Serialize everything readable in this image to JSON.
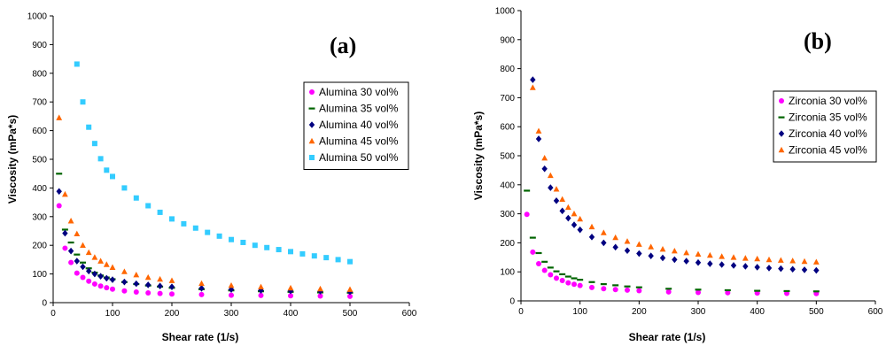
{
  "chart_data": [
    {
      "type": "scatter",
      "panel_label": "(a)",
      "xlabel": "Shear rate (1/s)",
      "ylabel": "Viscosity (mPa*s)",
      "xlim": [
        0,
        600
      ],
      "ylim": [
        0,
        1000
      ],
      "x_ticks": [
        "0",
        "100",
        "200",
        "300",
        "400",
        "500",
        "600"
      ],
      "y_ticks": [
        "0",
        "100",
        "200",
        "300",
        "400",
        "500",
        "600",
        "700",
        "800",
        "900",
        "1000"
      ],
      "grid": false,
      "legend_position": "right",
      "series": [
        {
          "name": "Alumina 30 vol%",
          "marker": "circle",
          "color": "#ff00ff",
          "points": [
            [
              10,
              338
            ],
            [
              20,
              190
            ],
            [
              30,
              140
            ],
            [
              40,
              103
            ],
            [
              50,
              88
            ],
            [
              60,
              75
            ],
            [
              70,
              65
            ],
            [
              80,
              58
            ],
            [
              90,
              52
            ],
            [
              100,
              47
            ],
            [
              120,
              41
            ],
            [
              140,
              37
            ],
            [
              160,
              34
            ],
            [
              180,
              32
            ],
            [
              200,
              30
            ],
            [
              250,
              28
            ],
            [
              300,
              26
            ],
            [
              350,
              25
            ],
            [
              400,
              24
            ],
            [
              450,
              23
            ],
            [
              500,
              22
            ]
          ]
        },
        {
          "name": "Alumina 35 vol%",
          "marker": "dash",
          "color": "#006400",
          "points": [
            [
              10,
              450
            ],
            [
              20,
              255
            ],
            [
              30,
              210
            ],
            [
              40,
              168
            ],
            [
              50,
              140
            ],
            [
              60,
              120
            ],
            [
              70,
              105
            ],
            [
              80,
              95
            ],
            [
              90,
              88
            ],
            [
              100,
              82
            ],
            [
              120,
              72
            ],
            [
              140,
              65
            ],
            [
              160,
              60
            ],
            [
              180,
              56
            ],
            [
              200,
              52
            ],
            [
              250,
              47
            ],
            [
              300,
              43
            ],
            [
              350,
              40
            ],
            [
              400,
              38
            ],
            [
              450,
              36
            ],
            [
              500,
              35
            ]
          ]
        },
        {
          "name": "Alumina 40 vol%",
          "marker": "diamond",
          "color": "#000080",
          "points": [
            [
              10,
              388
            ],
            [
              20,
              242
            ],
            [
              30,
              180
            ],
            [
              40,
              145
            ],
            [
              50,
              125
            ],
            [
              60,
              110
            ],
            [
              70,
              100
            ],
            [
              80,
              92
            ],
            [
              90,
              85
            ],
            [
              100,
              80
            ],
            [
              120,
              72
            ],
            [
              140,
              66
            ],
            [
              160,
              62
            ],
            [
              180,
              58
            ],
            [
              200,
              55
            ],
            [
              250,
              50
            ],
            [
              300,
              46
            ],
            [
              350,
              43
            ],
            [
              400,
              41
            ],
            [
              450,
              40
            ],
            [
              500,
              38
            ]
          ]
        },
        {
          "name": "Alumina 45 vol%",
          "marker": "triangle",
          "color": "#ff6600",
          "points": [
            [
              10,
              645
            ],
            [
              20,
              378
            ],
            [
              30,
              285
            ],
            [
              40,
              240
            ],
            [
              50,
              200
            ],
            [
              60,
              175
            ],
            [
              70,
              158
            ],
            [
              80,
              145
            ],
            [
              90,
              133
            ],
            [
              100,
              123
            ],
            [
              120,
              108
            ],
            [
              140,
              97
            ],
            [
              160,
              88
            ],
            [
              180,
              82
            ],
            [
              200,
              77
            ],
            [
              250,
              67
            ],
            [
              300,
              60
            ],
            [
              350,
              55
            ],
            [
              400,
              51
            ],
            [
              450,
              48
            ],
            [
              500,
              46
            ]
          ]
        },
        {
          "name": "Alumina 50 vol%",
          "marker": "square",
          "color": "#33ccff",
          "points": [
            [
              40,
              832
            ],
            [
              50,
              700
            ],
            [
              60,
              612
            ],
            [
              70,
              555
            ],
            [
              80,
              502
            ],
            [
              90,
              462
            ],
            [
              100,
              440
            ],
            [
              120,
              400
            ],
            [
              140,
              365
            ],
            [
              160,
              338
            ],
            [
              180,
              315
            ],
            [
              200,
              292
            ],
            [
              220,
              275
            ],
            [
              240,
              260
            ],
            [
              260,
              245
            ],
            [
              280,
              232
            ],
            [
              300,
              220
            ],
            [
              320,
              210
            ],
            [
              340,
              200
            ],
            [
              360,
              192
            ],
            [
              380,
              185
            ],
            [
              400,
              178
            ],
            [
              420,
              170
            ],
            [
              440,
              163
            ],
            [
              460,
              157
            ],
            [
              480,
              150
            ],
            [
              500,
              143
            ]
          ]
        }
      ]
    },
    {
      "type": "scatter",
      "panel_label": "(b)",
      "xlabel": "Shear rate (1/s)",
      "ylabel": "Viscosity (mPa*s)",
      "xlim": [
        0,
        600
      ],
      "ylim": [
        0,
        1000
      ],
      "x_ticks": [
        "0",
        "100",
        "200",
        "300",
        "400",
        "500",
        "600"
      ],
      "y_ticks": [
        "0",
        "100",
        "200",
        "300",
        "400",
        "500",
        "600",
        "700",
        "800",
        "900",
        "1000"
      ],
      "grid": false,
      "legend_position": "right",
      "series": [
        {
          "name": "Zirconia 30 vol%",
          "marker": "circle",
          "color": "#ff00ff",
          "points": [
            [
              10,
              298
            ],
            [
              20,
              168
            ],
            [
              30,
              128
            ],
            [
              40,
              105
            ],
            [
              50,
              90
            ],
            [
              60,
              78
            ],
            [
              70,
              70
            ],
            [
              80,
              62
            ],
            [
              90,
              57
            ],
            [
              100,
              53
            ],
            [
              120,
              46
            ],
            [
              140,
              42
            ],
            [
              160,
              39
            ],
            [
              180,
              37
            ],
            [
              200,
              35
            ],
            [
              250,
              31
            ],
            [
              300,
              29
            ],
            [
              350,
              28
            ],
            [
              400,
              27
            ],
            [
              450,
              26
            ],
            [
              500,
              25
            ]
          ]
        },
        {
          "name": "Zirconia 35 vol%",
          "marker": "dash",
          "color": "#006400",
          "points": [
            [
              10,
              380
            ],
            [
              20,
              218
            ],
            [
              30,
              165
            ],
            [
              40,
              135
            ],
            [
              50,
              115
            ],
            [
              60,
              102
            ],
            [
              70,
              92
            ],
            [
              80,
              84
            ],
            [
              90,
              78
            ],
            [
              100,
              73
            ],
            [
              120,
              65
            ],
            [
              140,
              58
            ],
            [
              160,
              54
            ],
            [
              180,
              50
            ],
            [
              200,
              47
            ],
            [
              250,
              42
            ],
            [
              300,
              39
            ],
            [
              350,
              37
            ],
            [
              400,
              35
            ],
            [
              450,
              34
            ],
            [
              500,
              33
            ]
          ]
        },
        {
          "name": "Zirconia 40 vol%",
          "marker": "diamond",
          "color": "#000080",
          "points": [
            [
              20,
              762
            ],
            [
              30,
              558
            ],
            [
              40,
              455
            ],
            [
              50,
              390
            ],
            [
              60,
              345
            ],
            [
              70,
              310
            ],
            [
              80,
              285
            ],
            [
              90,
              262
            ],
            [
              100,
              245
            ],
            [
              120,
              220
            ],
            [
              140,
              200
            ],
            [
              160,
              185
            ],
            [
              180,
              173
            ],
            [
              200,
              163
            ],
            [
              220,
              155
            ],
            [
              240,
              148
            ],
            [
              260,
              142
            ],
            [
              280,
              137
            ],
            [
              300,
              132
            ],
            [
              320,
              128
            ],
            [
              340,
              125
            ],
            [
              360,
              122
            ],
            [
              380,
              119
            ],
            [
              400,
              116
            ],
            [
              420,
              113
            ],
            [
              440,
              111
            ],
            [
              460,
              109
            ],
            [
              480,
              107
            ],
            [
              500,
              105
            ]
          ]
        },
        {
          "name": "Zirconia 45 vol%",
          "marker": "triangle",
          "color": "#ff6600",
          "points": [
            [
              20,
              735
            ],
            [
              30,
              585
            ],
            [
              40,
              492
            ],
            [
              50,
              432
            ],
            [
              60,
              385
            ],
            [
              70,
              350
            ],
            [
              80,
              322
            ],
            [
              90,
              300
            ],
            [
              100,
              282
            ],
            [
              120,
              255
            ],
            [
              140,
              235
            ],
            [
              160,
              218
            ],
            [
              180,
              205
            ],
            [
              200,
              195
            ],
            [
              220,
              186
            ],
            [
              240,
              178
            ],
            [
              260,
              172
            ],
            [
              280,
              166
            ],
            [
              300,
              161
            ],
            [
              320,
              157
            ],
            [
              340,
              153
            ],
            [
              360,
              150
            ],
            [
              380,
              147
            ],
            [
              400,
              145
            ],
            [
              420,
              142
            ],
            [
              440,
              140
            ],
            [
              460,
              138
            ],
            [
              480,
              136
            ],
            [
              500,
              134
            ]
          ]
        }
      ]
    }
  ]
}
